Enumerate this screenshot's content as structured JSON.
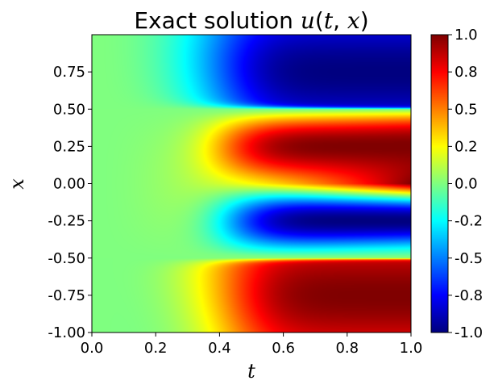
{
  "chart_data": {
    "type": "heatmap",
    "title": {
      "prefix": "Exact solution ",
      "func": "u",
      "open": "(",
      "var1": "t",
      "sep": ", ",
      "var2": "x",
      "close": ")"
    },
    "xlabel": "t",
    "ylabel": "x",
    "xlim": [
      0.0,
      1.0
    ],
    "ylim": [
      -1.0,
      1.0
    ],
    "x_ticks": [
      "0.0",
      "0.2",
      "0.4",
      "0.6",
      "0.8",
      "1.0"
    ],
    "x_tick_values": [
      0.0,
      0.2,
      0.4,
      0.6,
      0.8,
      1.0
    ],
    "y_ticks": [
      "0.75",
      "0.50",
      "0.25",
      "0.00",
      "-0.25",
      "-0.50",
      "-0.75",
      "-1.00"
    ],
    "y_tick_values": [
      0.75,
      0.5,
      0.25,
      0.0,
      -0.25,
      -0.5,
      -0.75,
      -1.0
    ],
    "colorbar": {
      "colormap": "jet",
      "range": [
        -1.0,
        1.0
      ],
      "ticks": [
        "1.0",
        "0.8",
        "0.5",
        "0.2",
        "0.0",
        "-0.2",
        "-0.5",
        "-0.8",
        "-1.0"
      ],
      "tick_values": [
        1.0,
        0.75,
        0.5,
        0.25,
        0.0,
        -0.25,
        -0.5,
        -0.75,
        -1.0
      ]
    }
  }
}
